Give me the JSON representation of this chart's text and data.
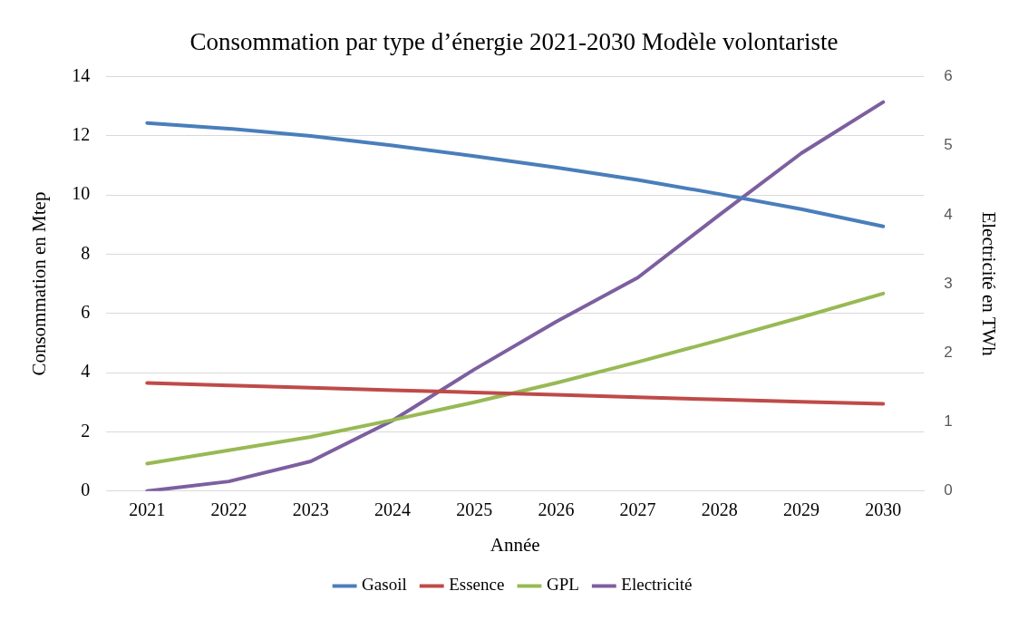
{
  "chart_data": {
    "type": "line",
    "title": "Consommation par type d’énergie 2021-2030 Modèle volontariste",
    "xlabel": "Année",
    "ylabel": "Consommation en Mtep",
    "y2label": "Electricité en TWh",
    "categories": [
      "2021",
      "2022",
      "2023",
      "2024",
      "2025",
      "2026",
      "2027",
      "2028",
      "2029",
      "2030"
    ],
    "series": [
      {
        "name": "Gasoil",
        "color": "#4a7ebb",
        "values": [
          12.43,
          12.24,
          11.99,
          11.67,
          11.31,
          10.93,
          10.51,
          10.03,
          9.52,
          8.94
        ]
      },
      {
        "name": "Essence",
        "color": "#be4b48",
        "values": [
          3.65,
          3.57,
          3.49,
          3.41,
          3.33,
          3.25,
          3.17,
          3.09,
          3.02,
          2.95
        ]
      },
      {
        "name": "GPL",
        "color": "#98b954",
        "values": [
          0.93,
          1.38,
          1.83,
          2.4,
          3.0,
          3.65,
          4.36,
          5.1,
          5.87,
          6.67
        ]
      },
      {
        "name": "Electricité",
        "color": "#7d5fa0",
        "axis": "y2",
        "values": [
          0,
          0.14,
          0.43,
          1.02,
          1.76,
          2.45,
          3.09,
          4.0,
          4.89,
          5.63
        ]
      }
    ],
    "ylim": [
      0,
      14
    ],
    "yticks": [
      0,
      2,
      4,
      6,
      8,
      10,
      12,
      14
    ],
    "y2lim": [
      0,
      6
    ],
    "y2ticks": [
      0,
      1,
      2,
      3,
      4,
      5,
      6
    ],
    "grid": "y",
    "legend": "bottom",
    "marker": "none",
    "line_style": "solid"
  }
}
